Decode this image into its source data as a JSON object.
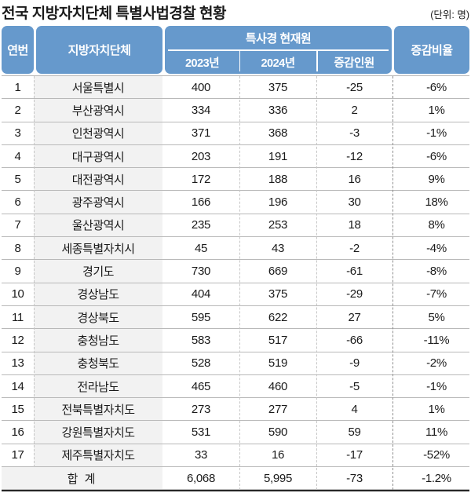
{
  "title": "전국 지방자치단체 특별사법경찰 현황",
  "unit_label": "(단위: 명)",
  "colors": {
    "header_blue": "#6699cc",
    "header_text": "#ffffff",
    "name_column_bg": "#f2f2f2",
    "row_line": "#b9b9b9",
    "bottom_border": "#262626"
  },
  "header": {
    "col_num": "연번",
    "col_gov": "지방자치단체",
    "group_label": "특사경 현재원",
    "sub_2023": "2023년",
    "sub_2024": "2024년",
    "sub_diff": "증감인원",
    "col_rate": "증감비율"
  },
  "chart_data": {
    "type": "table",
    "title": "전국 지방자치단체 특별사법경찰 현황",
    "unit": "(단위: 명)",
    "columns": [
      "연번",
      "지방자치단체",
      "2023년",
      "2024년",
      "증감인원",
      "증감비율"
    ],
    "column_group": {
      "label": "특사경 현재원",
      "spans": [
        "2023년",
        "2024년",
        "증감인원"
      ]
    },
    "rows": [
      {
        "num": "1",
        "name": "서울특별시",
        "y2023": "400",
        "y2024": "375",
        "diff": "-25",
        "rate": "-6%"
      },
      {
        "num": "2",
        "name": "부산광역시",
        "y2023": "334",
        "y2024": "336",
        "diff": "2",
        "rate": "1%"
      },
      {
        "num": "3",
        "name": "인천광역시",
        "y2023": "371",
        "y2024": "368",
        "diff": "-3",
        "rate": "-1%"
      },
      {
        "num": "4",
        "name": "대구광역시",
        "y2023": "203",
        "y2024": "191",
        "diff": "-12",
        "rate": "-6%"
      },
      {
        "num": "5",
        "name": "대전광역시",
        "y2023": "172",
        "y2024": "188",
        "diff": "16",
        "rate": "9%"
      },
      {
        "num": "6",
        "name": "광주광역시",
        "y2023": "166",
        "y2024": "196",
        "diff": "30",
        "rate": "18%"
      },
      {
        "num": "7",
        "name": "울산광역시",
        "y2023": "235",
        "y2024": "253",
        "diff": "18",
        "rate": "8%"
      },
      {
        "num": "8",
        "name": "세종특별자치시",
        "y2023": "45",
        "y2024": "43",
        "diff": "-2",
        "rate": "-4%"
      },
      {
        "num": "9",
        "name": "경기도",
        "y2023": "730",
        "y2024": "669",
        "diff": "-61",
        "rate": "-8%"
      },
      {
        "num": "10",
        "name": "경상남도",
        "y2023": "404",
        "y2024": "375",
        "diff": "-29",
        "rate": "-7%"
      },
      {
        "num": "11",
        "name": "경상북도",
        "y2023": "595",
        "y2024": "622",
        "diff": "27",
        "rate": "5%"
      },
      {
        "num": "12",
        "name": "충청남도",
        "y2023": "583",
        "y2024": "517",
        "diff": "-66",
        "rate": "-11%"
      },
      {
        "num": "13",
        "name": "충청북도",
        "y2023": "528",
        "y2024": "519",
        "diff": "-9",
        "rate": "-2%"
      },
      {
        "num": "14",
        "name": "전라남도",
        "y2023": "465",
        "y2024": "460",
        "diff": "-5",
        "rate": "-1%"
      },
      {
        "num": "15",
        "name": "전북특별자치도",
        "y2023": "273",
        "y2024": "277",
        "diff": "4",
        "rate": "1%"
      },
      {
        "num": "16",
        "name": "강원특별자치도",
        "y2023": "531",
        "y2024": "590",
        "diff": "59",
        "rate": "11%"
      },
      {
        "num": "17",
        "name": "제주특별자치도",
        "y2023": "33",
        "y2024": "16",
        "diff": "-17",
        "rate": "-52%"
      }
    ],
    "total": {
      "label": "합 계",
      "y2023": "6,068",
      "y2024": "5,995",
      "diff": "-73",
      "rate": "-1.2%"
    }
  }
}
